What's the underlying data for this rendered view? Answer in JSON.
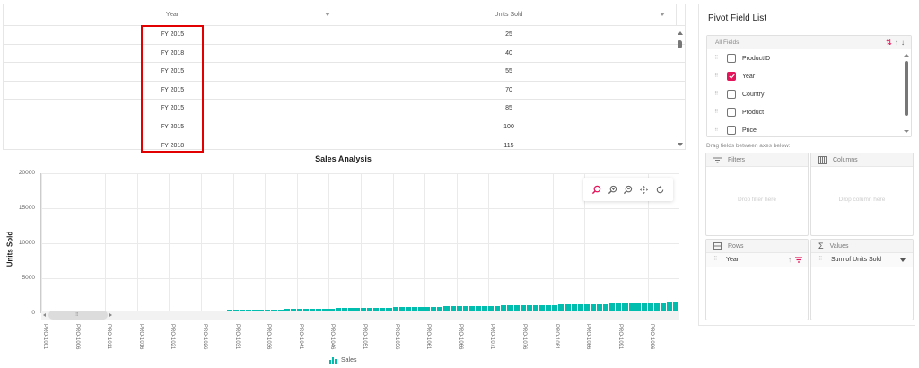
{
  "grid": {
    "columns": [
      {
        "label": "Year"
      },
      {
        "label": "Units Sold"
      }
    ],
    "rows": [
      {
        "year": "FY 2015",
        "units": "25"
      },
      {
        "year": "FY 2018",
        "units": "40"
      },
      {
        "year": "FY 2015",
        "units": "55"
      },
      {
        "year": "FY 2015",
        "units": "70"
      },
      {
        "year": "FY 2015",
        "units": "85"
      },
      {
        "year": "FY 2015",
        "units": "100"
      },
      {
        "year": "FY 2018",
        "units": "115"
      }
    ]
  },
  "chart_data": {
    "type": "bar",
    "title": "Sales Analysis",
    "xlabel": "",
    "ylabel": "Units Sold",
    "ylim": [
      0,
      20000
    ],
    "yticks": [
      "20000",
      "15000",
      "10000",
      "5000",
      "0"
    ],
    "xtick_labels": [
      "PRO-1001",
      "PRO-1006",
      "PRO-1011",
      "PRO-1016",
      "PRO-1021",
      "PRO-1026",
      "PRO-1031",
      "PRO-1036",
      "PRO-1041",
      "PRO-1046",
      "PRO-1051",
      "PRO-1056",
      "PRO-1061",
      "PRO-1066",
      "PRO-1071",
      "PRO-1076",
      "PRO-1081",
      "PRO-1086",
      "PRO-1091",
      "PRO-1096"
    ],
    "categories_range": "PRO-1001 to PRO-1100",
    "series": [
      {
        "name": "Sales",
        "color": "#00bdae",
        "start": 25,
        "step": 15,
        "count": 100,
        "approx_last": 1510
      }
    ],
    "grid": true,
    "legend_position": "bottom"
  },
  "chart_toolbar": {
    "items": [
      "zoom",
      "zoom-in",
      "zoom-out",
      "pan",
      "reset"
    ]
  },
  "legend": {
    "label": "Sales"
  },
  "field_list": {
    "title": "Pivot Field List",
    "all_fields_label": "All Fields",
    "fields": [
      {
        "label": "ProductID",
        "checked": false
      },
      {
        "label": "Year",
        "checked": true
      },
      {
        "label": "Country",
        "checked": false
      },
      {
        "label": "Product",
        "checked": false
      },
      {
        "label": "Price",
        "checked": false
      }
    ],
    "drag_hint": "Drag fields between axes below:",
    "axes": {
      "filters": {
        "label": "Filters",
        "empty": "Drop filter here"
      },
      "columns": {
        "label": "Columns",
        "empty": "Drop column here"
      },
      "rows": {
        "label": "Rows",
        "items": [
          "Year"
        ]
      },
      "values": {
        "label": "Values",
        "items": [
          "Sum of Units Sold"
        ]
      }
    }
  },
  "colors": {
    "accent": "#e3165b",
    "bar": "#00bdae",
    "highlight": "#e30000"
  }
}
